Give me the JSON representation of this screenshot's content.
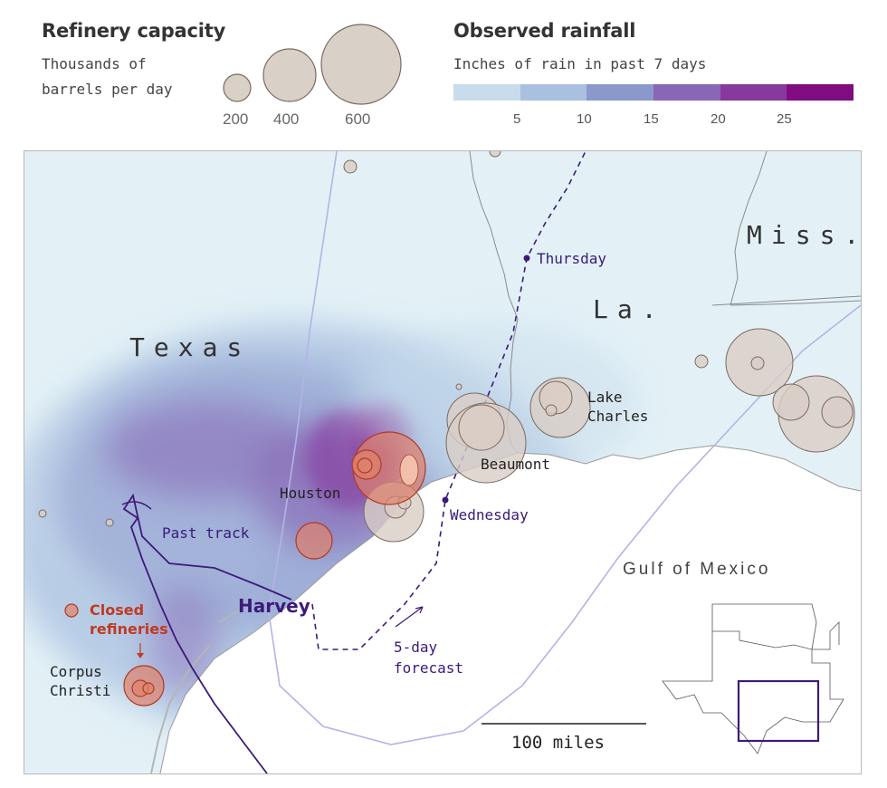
{
  "legend_capacity": {
    "title": "Refinery capacity",
    "subtitle_line1": "Thousands of",
    "subtitle_line2": "barrels per day",
    "bubbles": [
      "200",
      "400",
      "600"
    ]
  },
  "legend_rainfall": {
    "title": "Observed rainfall",
    "subtitle": "Inches of rain in past 7 days",
    "ticks": [
      "5",
      "10",
      "15",
      "20",
      "25"
    ],
    "colors": [
      "#c8dcec",
      "#a9c0e0",
      "#8c98cc",
      "#8867b6",
      "#88399e",
      "#800d7f"
    ]
  },
  "map": {
    "states": {
      "texas": "Texas",
      "louisiana": "La.",
      "mississippi": "Miss."
    },
    "gulf": "Gulf of Mexico",
    "cities": {
      "houston": "Houston",
      "beaumont": "Beaumont",
      "lake_charles_1": "Lake",
      "lake_charles_2": "Charles",
      "corpus_1": "Corpus",
      "corpus_2": "Christi"
    },
    "forecast_days": {
      "thursday": "Thursday",
      "wednesday": "Wednesday"
    },
    "storm": "Harvey",
    "past_track": "Past track",
    "forecast_1": "5-day",
    "forecast_2": "forecast",
    "closed_1": "Closed",
    "closed_2": "refineries",
    "scale": "100 miles"
  },
  "colors": {
    "closed_refinery": "#e0826b",
    "open_refinery": "#d9cdc5",
    "track": "#3d1a7a",
    "cone": "#b3b4e6"
  }
}
